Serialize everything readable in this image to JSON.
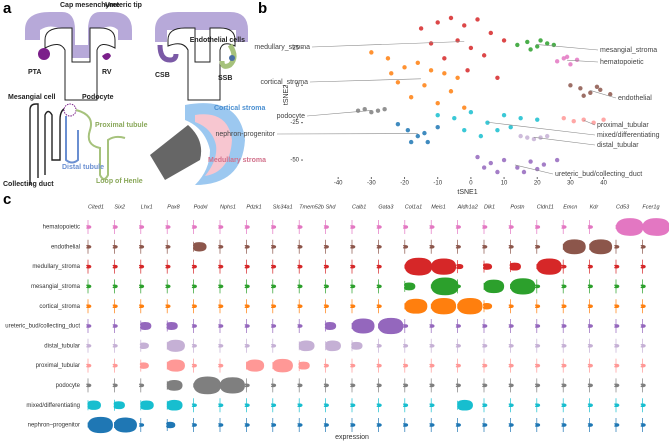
{
  "diagram": {
    "panel_label": "a",
    "labels": [
      "Cap mesenchyme",
      "Ureteric tip",
      "PTA",
      "RV",
      "Endothelial cells",
      "CSB",
      "SSB",
      "Mesangial cell",
      "Podocyte",
      "Proximal tubule",
      "Distal tubule",
      "Loop of Henle",
      "Collecting duct",
      "Cortical stroma",
      "Medullary stroma"
    ]
  },
  "chart_data": [
    {
      "type": "scatter",
      "panel_label": "b",
      "xlabel": "tSNE1",
      "ylabel": "tSNE2",
      "xlim": [
        -50,
        57
      ],
      "ylim": [
        -60,
        47
      ],
      "xticks": [
        -40,
        -30,
        -20,
        -10,
        0,
        10,
        20,
        30,
        40
      ],
      "yticks": [
        25,
        0,
        -25,
        -50
      ],
      "series": [
        {
          "name": "medullary_stroma",
          "color": "#d62728",
          "x": [
            -15,
            -10,
            -6,
            -2,
            2,
            6,
            10,
            -12,
            -4,
            0,
            4,
            -8,
            -1,
            8
          ],
          "y": [
            38,
            42,
            45,
            40,
            44,
            35,
            30,
            28,
            30,
            25,
            20,
            18,
            10,
            5
          ]
        },
        {
          "name": "mesangial_stroma",
          "color": "#2ca02c",
          "x": [
            14,
            17,
            20,
            23,
            25,
            18,
            21
          ],
          "y": [
            27,
            29,
            26,
            28,
            27,
            24,
            30
          ]
        },
        {
          "name": "hematopoietic",
          "color": "#e377c2",
          "x": [
            26,
            28,
            30,
            32,
            29
          ],
          "y": [
            16,
            18,
            14,
            17,
            19
          ]
        },
        {
          "name": "cortical_stroma",
          "color": "#ff7f0e",
          "x": [
            -30,
            -25,
            -20,
            -16,
            -12,
            -8,
            -4,
            -22,
            -14,
            -6,
            -18,
            -10,
            -2,
            -24
          ],
          "y": [
            22,
            18,
            12,
            15,
            10,
            8,
            5,
            2,
            0,
            -4,
            -8,
            -12,
            -15,
            8
          ]
        },
        {
          "name": "endothelial",
          "color": "#8c564b",
          "x": [
            30,
            33,
            36,
            39,
            42,
            34,
            38
          ],
          "y": [
            0,
            -2,
            -5,
            -3,
            -6,
            -7,
            -1
          ]
        },
        {
          "name": "podocyte",
          "color": "#7f7f7f",
          "x": [
            -34,
            -32,
            -30,
            -28,
            -26
          ],
          "y": [
            -17,
            -16,
            -18,
            -17,
            -16
          ]
        },
        {
          "name": "proximal_tubular",
          "color": "#ff9896",
          "x": [
            28,
            31,
            34,
            37,
            40
          ],
          "y": [
            -22,
            -24,
            -23,
            -25,
            -23
          ]
        },
        {
          "name": "nephron-progenitor",
          "color": "#1f77b4",
          "x": [
            -22,
            -19,
            -16,
            -13,
            -10,
            -18,
            -14
          ],
          "y": [
            -26,
            -30,
            -34,
            -38,
            -28,
            -38,
            -32
          ]
        },
        {
          "name": "mixed/differentiating",
          "color": "#17becf",
          "x": [
            -10,
            -5,
            0,
            5,
            10,
            15,
            20,
            -2,
            8,
            3,
            12
          ],
          "y": [
            -20,
            -22,
            -18,
            -25,
            -20,
            -22,
            -23,
            -30,
            -30,
            -34,
            -28
          ]
        },
        {
          "name": "distal_tubular",
          "color": "#c5b0d5",
          "x": [
            15,
            17,
            19,
            21,
            23
          ],
          "y": [
            -34,
            -35,
            -36,
            -35,
            -34
          ]
        },
        {
          "name": "ureteric_bud/collecting_duct",
          "color": "#9467bd",
          "x": [
            2,
            6,
            10,
            14,
            18,
            22,
            26,
            8,
            16,
            4,
            20
          ],
          "y": [
            -48,
            -52,
            -50,
            -55,
            -51,
            -53,
            -50,
            -58,
            -58,
            -55,
            -56
          ]
        }
      ]
    },
    {
      "type": "violin",
      "panel_label": "c",
      "xlabel": "expression",
      "categories": [
        "Cited1",
        "Six2",
        "Lhx1",
        "Pax8",
        "Podxl",
        "Nphs1",
        "Pdzk1",
        "Slc34a1",
        "Tmem52b",
        "Shd",
        "Calb1",
        "Gata3",
        "Col1a1",
        "Meis1",
        "Aldh1a2",
        "Dlk1",
        "Postn",
        "Cldn11",
        "Emcn",
        "Kdr",
        "Cd53",
        "Fcer1g"
      ],
      "series": [
        {
          "name": "hematopoietic",
          "color": "#e377c2",
          "values": [
            0,
            0,
            0,
            0,
            0,
            0,
            0,
            0,
            0,
            0,
            0,
            0,
            0,
            0,
            0,
            0,
            0,
            0,
            0,
            0,
            1,
            1
          ]
        },
        {
          "name": "endothelial",
          "color": "#8c564b",
          "values": [
            0,
            0,
            0,
            0,
            0.4,
            0,
            0,
            0,
            0,
            0,
            0,
            0,
            0,
            0,
            0,
            0,
            0,
            0,
            0.8,
            0.8,
            0,
            0
          ]
        },
        {
          "name": "medullary_stroma",
          "color": "#d62728",
          "values": [
            0,
            0,
            0,
            0,
            0,
            0,
            0,
            0,
            0,
            0,
            0,
            0,
            1,
            0.9,
            0.1,
            0.2,
            0.3,
            0.9,
            0,
            0,
            0,
            0
          ]
        },
        {
          "name": "mesangial_stroma",
          "color": "#2ca02c",
          "values": [
            0,
            0,
            0,
            0,
            0,
            0,
            0,
            0,
            0,
            0,
            0,
            0,
            0.3,
            1,
            0,
            0.7,
            0.9,
            0,
            0,
            0,
            0,
            0
          ]
        },
        {
          "name": "cortical_stroma",
          "color": "#ff7f0e",
          "values": [
            0,
            0,
            0,
            0,
            0,
            0,
            0,
            0,
            0,
            0,
            0,
            0,
            0.8,
            0.9,
            0.9,
            0.2,
            0,
            0,
            0,
            0,
            0,
            0
          ]
        },
        {
          "name": "ureteric_bud/collecting_duct",
          "color": "#9467bd",
          "values": [
            0,
            0,
            0.3,
            0.3,
            0,
            0,
            0,
            0,
            0,
            0.3,
            0.8,
            0.9,
            0,
            0,
            0,
            0,
            0,
            0,
            0,
            0,
            0,
            0
          ]
        },
        {
          "name": "distal_tubular",
          "color": "#c5b0d5",
          "values": [
            0,
            0,
            0.2,
            0.6,
            0,
            0,
            0,
            0,
            0.5,
            0.5,
            0.3,
            0,
            0,
            0,
            0,
            0,
            0,
            0,
            0,
            0,
            0,
            0
          ]
        },
        {
          "name": "proximal_tubular",
          "color": "#ff9896",
          "values": [
            0,
            0,
            0.2,
            0.6,
            0,
            0,
            0.6,
            0.7,
            0.3,
            0,
            0,
            0,
            0,
            0,
            0,
            0,
            0,
            0,
            0,
            0,
            0,
            0
          ]
        },
        {
          "name": "podocyte",
          "color": "#7f7f7f",
          "values": [
            0,
            0,
            0,
            0.5,
            1,
            0.9,
            0,
            0,
            0,
            0,
            0,
            0,
            0,
            0,
            0,
            0,
            0,
            0,
            0,
            0,
            0,
            0
          ]
        },
        {
          "name": "mixed/differentiating",
          "color": "#17becf",
          "values": [
            0.4,
            0.3,
            0.4,
            0.5,
            0,
            0,
            0,
            0,
            0,
            0,
            0,
            0,
            0,
            0,
            0.5,
            0,
            0,
            0,
            0,
            0,
            0,
            0
          ]
        },
        {
          "name": "nephron–progenitor",
          "color": "#1f77b4",
          "values": [
            0.9,
            0.8,
            0,
            0.2,
            0,
            0,
            0,
            0,
            0,
            0,
            0,
            0,
            0,
            0,
            0,
            0,
            0,
            0,
            0,
            0,
            0,
            0
          ]
        }
      ]
    }
  ]
}
